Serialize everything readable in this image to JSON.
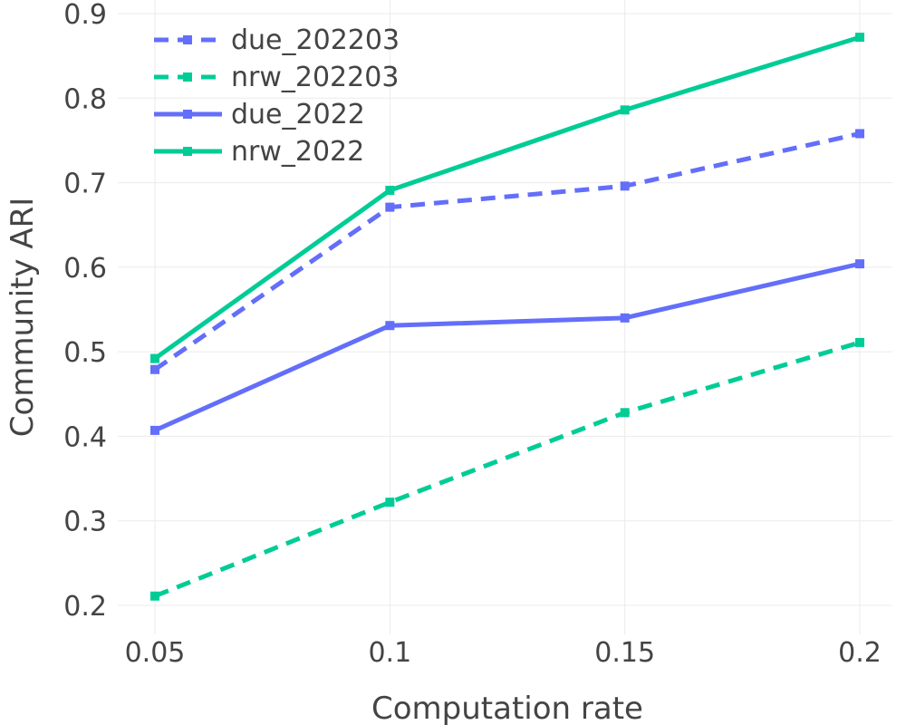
{
  "chart_data": {
    "type": "line",
    "title": "",
    "xlabel": "Computation rate",
    "ylabel": "Community ARI",
    "x": [
      0.05,
      0.1,
      0.15,
      0.2
    ],
    "x_tick_labels": [
      "0.05",
      "0.1",
      "0.15",
      "0.2"
    ],
    "y_ticks": [
      0.2,
      0.3,
      0.4,
      0.5,
      0.6,
      0.7,
      0.8,
      0.9
    ],
    "y_tick_labels": [
      "0.2",
      "0.3",
      "0.4",
      "0.5",
      "0.6",
      "0.7",
      "0.8",
      "0.9"
    ],
    "ylim": [
      0.18,
      0.91
    ],
    "xlim": [
      0.03,
      0.205
    ],
    "grid": true,
    "legend_placement": "top-left",
    "series": [
      {
        "name": "due_202203",
        "values": [
          0.479,
          0.671,
          0.696,
          0.758
        ],
        "color": "#636efa",
        "dash": "dashed"
      },
      {
        "name": "nrw_202203",
        "values": [
          0.211,
          0.322,
          0.428,
          0.511
        ],
        "color": "#00cc96",
        "dash": "dashed"
      },
      {
        "name": "due_2022",
        "values": [
          0.407,
          0.531,
          0.54,
          0.604
        ],
        "color": "#636efa",
        "dash": "solid"
      },
      {
        "name": "nrw_2022",
        "values": [
          0.492,
          0.691,
          0.786,
          0.872
        ],
        "color": "#00cc96",
        "dash": "solid"
      }
    ]
  }
}
